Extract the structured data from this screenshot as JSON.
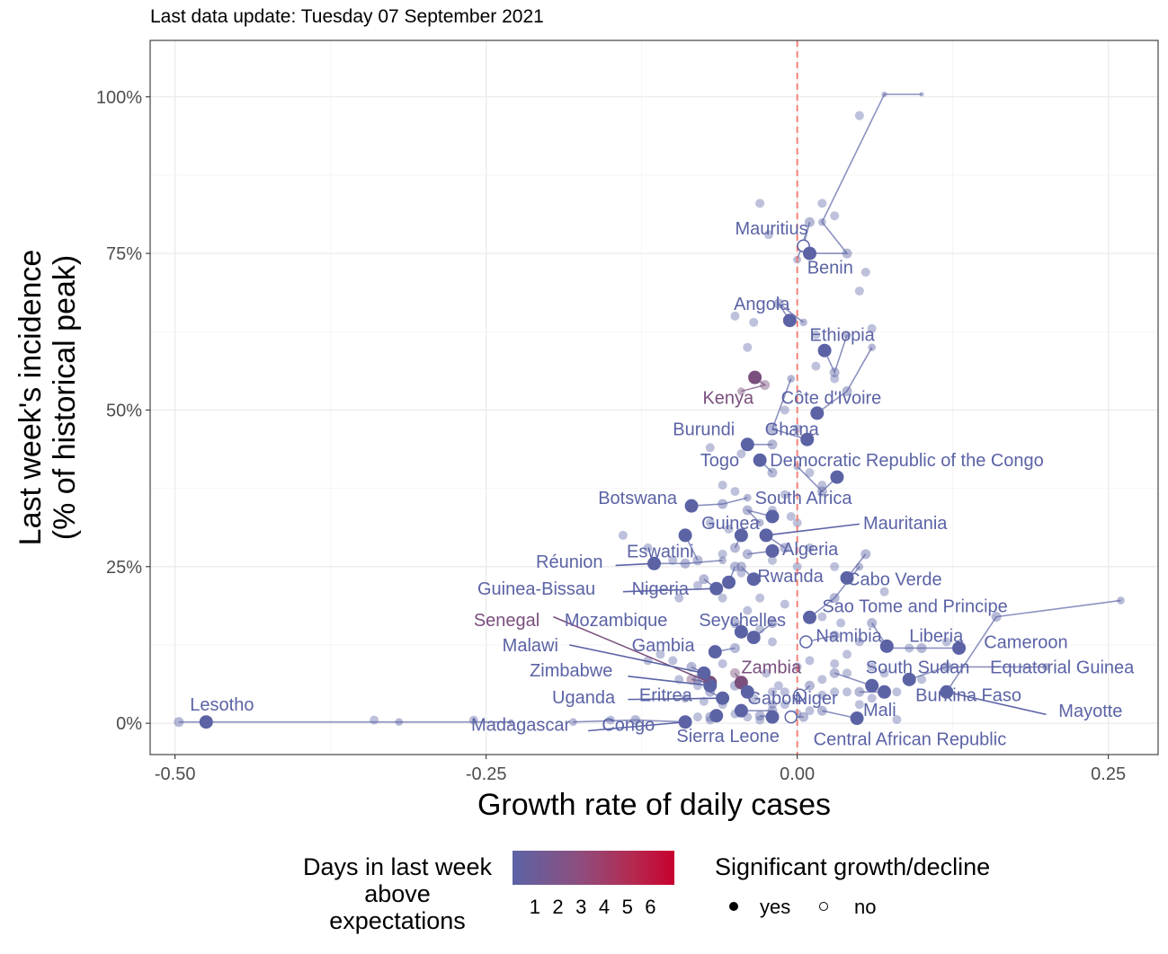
{
  "subtitle": "Last data update: Tuesday 07 September 2021",
  "colors": {
    "low": "#5b63a5",
    "high": "#c8002f",
    "kenya": "#7a4f7d",
    "refline": "#f8766d",
    "grid": "#ebebeb"
  },
  "chart_data": {
    "type": "scatter",
    "xlabel": "Growth rate of daily cases",
    "ylabel_line1": "Last week's incidence",
    "ylabel_line2": "(% of historical peak)",
    "xlim": [
      -0.52,
      0.29
    ],
    "ylim": [
      -0.05,
      1.09
    ],
    "x_ticks": [
      -0.5,
      -0.25,
      0.0,
      0.25
    ],
    "x_tick_labels": [
      "-0.50",
      "-0.25",
      "0.00",
      "0.25"
    ],
    "y_ticks": [
      0,
      0.25,
      0.5,
      0.75,
      1.0
    ],
    "y_tick_labels": [
      "0%",
      "25%",
      "50%",
      "75%",
      "100%"
    ],
    "reference_line_x": 0,
    "legend_color_title": [
      "Days in last week",
      "above",
      "expectations"
    ],
    "legend_color_ticks": [
      "1",
      "2",
      "3",
      "4",
      "5",
      "6"
    ],
    "legend_shape_title": "Significant growth/decline",
    "legend_shape_items": [
      "yes",
      "no"
    ],
    "countries": [
      {
        "name": "Lesotho",
        "x": -0.475,
        "y": 0.002,
        "days": 0,
        "sig": true,
        "label": [
          -0.488,
          0.02
        ],
        "trail": [
          [
            -0.497,
            0.002
          ],
          [
            -0.32,
            0.002
          ],
          [
            -0.23,
            0.002
          ]
        ]
      },
      {
        "name": "Mauritius",
        "x": 0.005,
        "y": 0.762,
        "days": 0,
        "sig": false,
        "label": [
          -0.05,
          0.78
        ],
        "trail": [
          [
            0.01,
            0.8
          ],
          [
            0.0,
            0.74
          ]
        ]
      },
      {
        "name": "Benin",
        "x": 0.01,
        "y": 0.75,
        "days": 0,
        "sig": true,
        "label": [
          0.008,
          0.718
        ],
        "trail": [
          [
            0.04,
            0.75
          ],
          [
            0.02,
            0.8
          ],
          [
            0.07,
            1.004
          ],
          [
            0.1,
            1.004
          ]
        ]
      },
      {
        "name": "Angola",
        "x": -0.006,
        "y": 0.643,
        "days": 0,
        "sig": true,
        "label": [
          -0.051,
          0.66
        ],
        "trail": [
          [
            -0.015,
            0.67
          ],
          [
            0.005,
            0.64
          ]
        ]
      },
      {
        "name": "Ethiopia",
        "x": 0.022,
        "y": 0.595,
        "days": 0,
        "sig": true,
        "label": [
          0.01,
          0.61
        ],
        "trail": [
          [
            0.03,
            0.56
          ],
          [
            0.04,
            0.62
          ]
        ]
      },
      {
        "name": "Kenya",
        "x": -0.034,
        "y": 0.552,
        "days": 3,
        "sig": true,
        "label": [
          -0.076,
          0.51
        ],
        "trail": [
          [
            -0.026,
            0.54
          ],
          [
            -0.045,
            0.53
          ]
        ]
      },
      {
        "name": "Côte d'Ivoire",
        "x": 0.016,
        "y": 0.495,
        "days": 0,
        "sig": true,
        "label": [
          -0.013,
          0.51
        ],
        "trail": [
          [
            0.04,
            0.53
          ],
          [
            0.06,
            0.6
          ]
        ]
      },
      {
        "name": "Burundi",
        "x": -0.04,
        "y": 0.445,
        "days": 0,
        "sig": true,
        "label": [
          -0.1,
          0.46
        ],
        "trail": [
          [
            -0.02,
            0.445
          ]
        ]
      },
      {
        "name": "Ghana",
        "x": 0.008,
        "y": 0.453,
        "days": 0,
        "sig": true,
        "label": [
          -0.026,
          0.46
        ],
        "trail": [
          [
            -0.02,
            0.47
          ],
          [
            -0.005,
            0.55
          ]
        ]
      },
      {
        "name": "Togo",
        "x": -0.03,
        "y": 0.42,
        "days": 0,
        "sig": true,
        "label": [
          -0.078,
          0.41
        ],
        "trail": [
          [
            -0.02,
            0.4
          ]
        ]
      },
      {
        "name": "Democratic Republic of the Congo",
        "x": 0.032,
        "y": 0.393,
        "days": 0,
        "sig": true,
        "label": [
          -0.022,
          0.41
        ],
        "trail": [
          [
            0.02,
            0.37
          ],
          [
            0.0,
            0.41
          ]
        ]
      },
      {
        "name": "Botswana",
        "x": -0.085,
        "y": 0.347,
        "days": 0,
        "sig": true,
        "label": [
          -0.16,
          0.35
        ],
        "trail": [
          [
            -0.06,
            0.35
          ],
          [
            -0.04,
            0.36
          ]
        ]
      },
      {
        "name": "South Africa",
        "x": -0.02,
        "y": 0.33,
        "days": 0,
        "sig": true,
        "label": [
          -0.034,
          0.35
        ],
        "trail": [
          [
            -0.04,
            0.34
          ],
          [
            -0.03,
            0.32
          ]
        ]
      },
      {
        "name": "Mauritania",
        "x": -0.025,
        "y": 0.3,
        "days": 0,
        "sig": true,
        "label": [
          0.053,
          0.31
        ],
        "leader": [
          0.05,
          0.318
        ],
        "trail": [
          [
            -0.01,
            0.28
          ]
        ]
      },
      {
        "name": "Guinea",
        "x": -0.045,
        "y": 0.3,
        "days": 0,
        "sig": true,
        "label": [
          -0.077,
          0.31
        ],
        "trail": [
          [
            -0.05,
            0.28
          ]
        ]
      },
      {
        "name": "Algeria",
        "x": -0.02,
        "y": 0.275,
        "days": 0,
        "sig": true,
        "label": [
          -0.012,
          0.268
        ],
        "trail": [
          [
            -0.04,
            0.27
          ]
        ]
      },
      {
        "name": "Eswatini",
        "x": -0.09,
        "y": 0.3,
        "days": 0,
        "sig": true,
        "label": [
          -0.137,
          0.265
        ],
        "trail": [
          [
            -0.08,
            0.26
          ]
        ]
      },
      {
        "name": "Réunion",
        "x": -0.115,
        "y": 0.255,
        "days": 0,
        "sig": true,
        "label": [
          -0.21,
          0.248
        ],
        "leader": [
          -0.146,
          0.252
        ],
        "trail": [
          [
            -0.09,
            0.255
          ],
          [
            -0.06,
            0.26
          ]
        ]
      },
      {
        "name": "Rwanda",
        "x": -0.035,
        "y": 0.23,
        "days": 0,
        "sig": true,
        "label": [
          -0.032,
          0.225
        ],
        "trail": [
          [
            -0.045,
            0.25
          ]
        ]
      },
      {
        "name": "Cabo Verde",
        "x": 0.04,
        "y": 0.232,
        "days": 0,
        "sig": true,
        "label": [
          0.04,
          0.22
        ],
        "trail": [
          [
            0.055,
            0.27
          ]
        ]
      },
      {
        "name": "Guinea-Bissau",
        "x": -0.065,
        "y": 0.215,
        "days": 0,
        "sig": true,
        "label": [
          -0.257,
          0.205
        ],
        "leader": [
          -0.14,
          0.21
        ],
        "trail": [
          [
            -0.075,
            0.23
          ]
        ]
      },
      {
        "name": "Nigeria",
        "x": -0.055,
        "y": 0.225,
        "days": 0,
        "sig": true,
        "label": [
          -0.133,
          0.205
        ],
        "trail": [
          [
            -0.05,
            0.25
          ]
        ]
      },
      {
        "name": "Sao Tome and Principe",
        "x": 0.01,
        "y": 0.169,
        "days": 0,
        "sig": true,
        "label": [
          0.02,
          0.177
        ],
        "trail": [
          [
            0.03,
            0.2
          ],
          [
            0.05,
            0.25
          ]
        ]
      },
      {
        "name": "Senegal",
        "x": -0.07,
        "y": 0.065,
        "days": 2,
        "sig": true,
        "label": [
          -0.26,
          0.155
        ],
        "leader": [
          -0.196,
          0.17
        ],
        "trail": [
          [
            -0.085,
            0.07
          ]
        ]
      },
      {
        "name": "Mozambique",
        "x": -0.045,
        "y": 0.146,
        "days": 0,
        "sig": true,
        "label": [
          -0.187,
          0.155
        ],
        "trail": [
          [
            -0.05,
            0.16
          ]
        ]
      },
      {
        "name": "Seychelles",
        "x": -0.035,
        "y": 0.137,
        "days": 0,
        "sig": true,
        "label": [
          -0.079,
          0.155
        ],
        "trail": [
          [
            -0.02,
            0.16
          ]
        ]
      },
      {
        "name": "Namibia",
        "x": 0.007,
        "y": 0.13,
        "days": 0,
        "sig": false,
        "label": [
          0.015,
          0.13
        ],
        "trail": [
          [
            0.03,
            0.14
          ]
        ]
      },
      {
        "name": "Liberia",
        "x": 0.072,
        "y": 0.123,
        "days": 0,
        "sig": true,
        "label": [
          0.09,
          0.13
        ],
        "trail": [
          [
            0.06,
            0.16
          ]
        ]
      },
      {
        "name": "Malawi",
        "x": -0.075,
        "y": 0.08,
        "days": 0,
        "sig": true,
        "label": [
          -0.237,
          0.115
        ],
        "leader": [
          -0.183,
          0.125
        ],
        "trail": [
          [
            -0.085,
            0.09
          ]
        ]
      },
      {
        "name": "Gambia",
        "x": -0.066,
        "y": 0.114,
        "days": 0,
        "sig": true,
        "label": [
          -0.133,
          0.115
        ],
        "trail": [
          [
            -0.05,
            0.12
          ]
        ]
      },
      {
        "name": "Cameroon",
        "x": 0.13,
        "y": 0.12,
        "days": 0,
        "sig": true,
        "label": [
          0.15,
          0.12
        ],
        "trail": [
          [
            0.1,
            0.12
          ],
          [
            0.07,
            0.12
          ]
        ]
      },
      {
        "name": "Zimbabwe",
        "x": -0.07,
        "y": 0.06,
        "days": 0,
        "sig": true,
        "label": [
          -0.215,
          0.075
        ],
        "leader": [
          -0.136,
          0.075
        ],
        "trail": [
          [
            -0.08,
            0.07
          ]
        ]
      },
      {
        "name": "Zambia",
        "x": -0.045,
        "y": 0.065,
        "days": 1,
        "sig": true,
        "label": [
          -0.045,
          0.08
        ],
        "trail": [
          [
            -0.05,
            0.08
          ]
        ]
      },
      {
        "name": "South Sudan",
        "x": 0.06,
        "y": 0.06,
        "days": 0,
        "sig": true,
        "label": [
          0.055,
          0.08
        ],
        "trail": [
          [
            0.03,
            0.08
          ]
        ]
      },
      {
        "name": "Equatorial Guinea",
        "x": 0.09,
        "y": 0.07,
        "days": 0,
        "sig": true,
        "label": [
          0.155,
          0.08
        ],
        "trail": [
          [
            0.12,
            0.09
          ],
          [
            0.2,
            0.09
          ]
        ]
      },
      {
        "name": "Uganda",
        "x": -0.06,
        "y": 0.04,
        "days": 0,
        "sig": true,
        "label": [
          -0.197,
          0.032
        ],
        "leader": [
          -0.136,
          0.038
        ],
        "trail": [
          [
            -0.07,
            0.05
          ]
        ]
      },
      {
        "name": "Eritrea",
        "x": -0.04,
        "y": 0.05,
        "days": 0,
        "sig": true,
        "label": [
          -0.127,
          0.035
        ],
        "trail": [
          [
            -0.05,
            0.06
          ]
        ]
      },
      {
        "name": "Niger",
        "x": 0.002,
        "y": 0.045,
        "days": 0,
        "sig": false,
        "label": [
          -0.002,
          0.03
        ],
        "trail": [
          [
            0.01,
            0.06
          ]
        ]
      },
      {
        "name": "Burkina Faso",
        "x": 0.07,
        "y": 0.05,
        "days": 0,
        "sig": true,
        "label": [
          0.095,
          0.035
        ],
        "trail": [
          [
            0.05,
            0.05
          ]
        ]
      },
      {
        "name": "Mayotte",
        "x": 0.12,
        "y": 0.05,
        "days": 0,
        "sig": true,
        "label": [
          0.21,
          0.01
        ],
        "leader": [
          0.2,
          0.014
        ],
        "trail": [
          [
            0.16,
            0.17
          ],
          [
            0.26,
            0.196
          ]
        ]
      },
      {
        "name": "Gabon",
        "x": -0.045,
        "y": 0.02,
        "days": 0,
        "sig": true,
        "label": [
          -0.04,
          0.03
        ],
        "trail": [
          [
            -0.02,
            0.02
          ]
        ]
      },
      {
        "name": "Mali",
        "x": 0.048,
        "y": 0.008,
        "days": 0,
        "sig": true,
        "label": [
          0.053,
          0.012
        ],
        "trail": [
          [
            0.02,
            0.02
          ]
        ]
      },
      {
        "name": "Madagascar",
        "x": -0.09,
        "y": 0.002,
        "days": 0,
        "sig": true,
        "label": [
          -0.262,
          -0.012
        ],
        "leader": [
          -0.168,
          -0.012
        ],
        "trail": [
          [
            -0.13,
            0.005
          ],
          [
            -0.18,
            0.002
          ]
        ]
      },
      {
        "name": "Congo",
        "x": -0.065,
        "y": 0.012,
        "days": 0,
        "sig": true,
        "label": [
          -0.157,
          -0.012
        ],
        "trail": [
          [
            -0.07,
            0.01
          ]
        ]
      },
      {
        "name": "Sierra Leone",
        "x": -0.02,
        "y": 0.01,
        "days": 0,
        "sig": true,
        "label": [
          -0.097,
          -0.03
        ],
        "trail": [
          [
            -0.03,
            0.012
          ]
        ]
      },
      {
        "name": "Central African Republic",
        "x": -0.005,
        "y": 0.01,
        "days": 0,
        "sig": false,
        "label": [
          0.013,
          -0.035
        ],
        "trail": [
          [
            0.005,
            0.01
          ]
        ]
      }
    ],
    "background_points": [
      [
        -0.03,
        0.83
      ],
      [
        0.02,
        0.83
      ],
      [
        0.03,
        0.81
      ],
      [
        0.05,
        0.97
      ],
      [
        0.055,
        0.72
      ],
      [
        -0.023,
        0.78
      ],
      [
        0.05,
        0.69
      ],
      [
        -0.04,
        0.6
      ],
      [
        0.015,
        0.62
      ],
      [
        -0.035,
        0.64
      ],
      [
        -0.05,
        0.65
      ],
      [
        0.06,
        0.63
      ],
      [
        -0.07,
        0.44
      ],
      [
        -0.06,
        0.38
      ],
      [
        -0.05,
        0.37
      ],
      [
        -0.01,
        0.365
      ],
      [
        0.02,
        0.38
      ],
      [
        -0.07,
        0.32
      ],
      [
        -0.02,
        0.26
      ],
      [
        0.0,
        0.25
      ],
      [
        0.03,
        0.25
      ],
      [
        -0.14,
        0.3
      ],
      [
        -0.12,
        0.28
      ],
      [
        -0.1,
        0.26
      ],
      [
        -0.095,
        0.2
      ],
      [
        -0.08,
        0.22
      ],
      [
        -0.06,
        0.2
      ],
      [
        -0.04,
        0.18
      ],
      [
        -0.03,
        0.15
      ],
      [
        -0.02,
        0.13
      ],
      [
        0.0,
        0.09
      ],
      [
        0.01,
        0.1
      ],
      [
        0.04,
        0.11
      ],
      [
        0.07,
        0.21
      ],
      [
        0.12,
        0.13
      ],
      [
        0.09,
        0.12
      ],
      [
        0.03,
        0.05
      ],
      [
        0.02,
        0.07
      ],
      [
        0.04,
        0.08
      ],
      [
        0.06,
        0.04
      ],
      [
        0.08,
        0.05
      ],
      [
        0.07,
        0.08
      ],
      [
        0.04,
        0.05
      ],
      [
        0.05,
        0.03
      ],
      [
        -0.11,
        0.11
      ],
      [
        -0.1,
        0.1
      ],
      [
        -0.08,
        0.06
      ],
      [
        -0.06,
        0.03
      ],
      [
        -0.035,
        0.04
      ],
      [
        -0.025,
        0.08
      ],
      [
        -0.015,
        0.06
      ],
      [
        -0.01,
        0.03
      ],
      [
        0.01,
        0.02
      ],
      [
        -0.01,
        0.05
      ],
      [
        -0.02,
        0.05
      ],
      [
        -0.02,
        0.03
      ],
      [
        -0.04,
        0.01
      ],
      [
        -0.03,
        0.005
      ],
      [
        0.0,
        0.04
      ],
      [
        0.02,
        0.045
      ],
      [
        -0.12,
        0.1
      ],
      [
        -0.15,
        0.005
      ],
      [
        -0.26,
        0.005
      ],
      [
        -0.34,
        0.005
      ],
      [
        -0.08,
        0.01
      ],
      [
        -0.07,
        0.005
      ],
      [
        -0.05,
        0.015
      ],
      [
        0.0,
        0.015
      ],
      [
        0.08,
        0.006
      ],
      [
        0.03,
        0.55
      ],
      [
        0.015,
        0.57
      ],
      [
        -0.01,
        0.5
      ],
      [
        0.0,
        0.47
      ],
      [
        -0.045,
        0.43
      ],
      [
        0.01,
        0.4
      ],
      [
        -0.02,
        0.34
      ],
      [
        -0.005,
        0.33
      ],
      [
        0.0,
        0.32
      ],
      [
        0.01,
        0.28
      ],
      [
        -0.055,
        0.31
      ],
      [
        -0.06,
        0.27
      ],
      [
        -0.045,
        0.24
      ],
      [
        -0.03,
        0.2
      ],
      [
        -0.01,
        0.19
      ],
      [
        0.02,
        0.17
      ],
      [
        0.035,
        0.16
      ],
      [
        0.05,
        0.13
      ],
      [
        0.1,
        0.07
      ],
      [
        0.06,
        0.09
      ],
      [
        0.03,
        0.095
      ],
      [
        -0.095,
        0.07
      ],
      [
        -0.09,
        0.04
      ],
      [
        -0.075,
        0.035
      ],
      [
        -0.06,
        0.095
      ]
    ]
  }
}
